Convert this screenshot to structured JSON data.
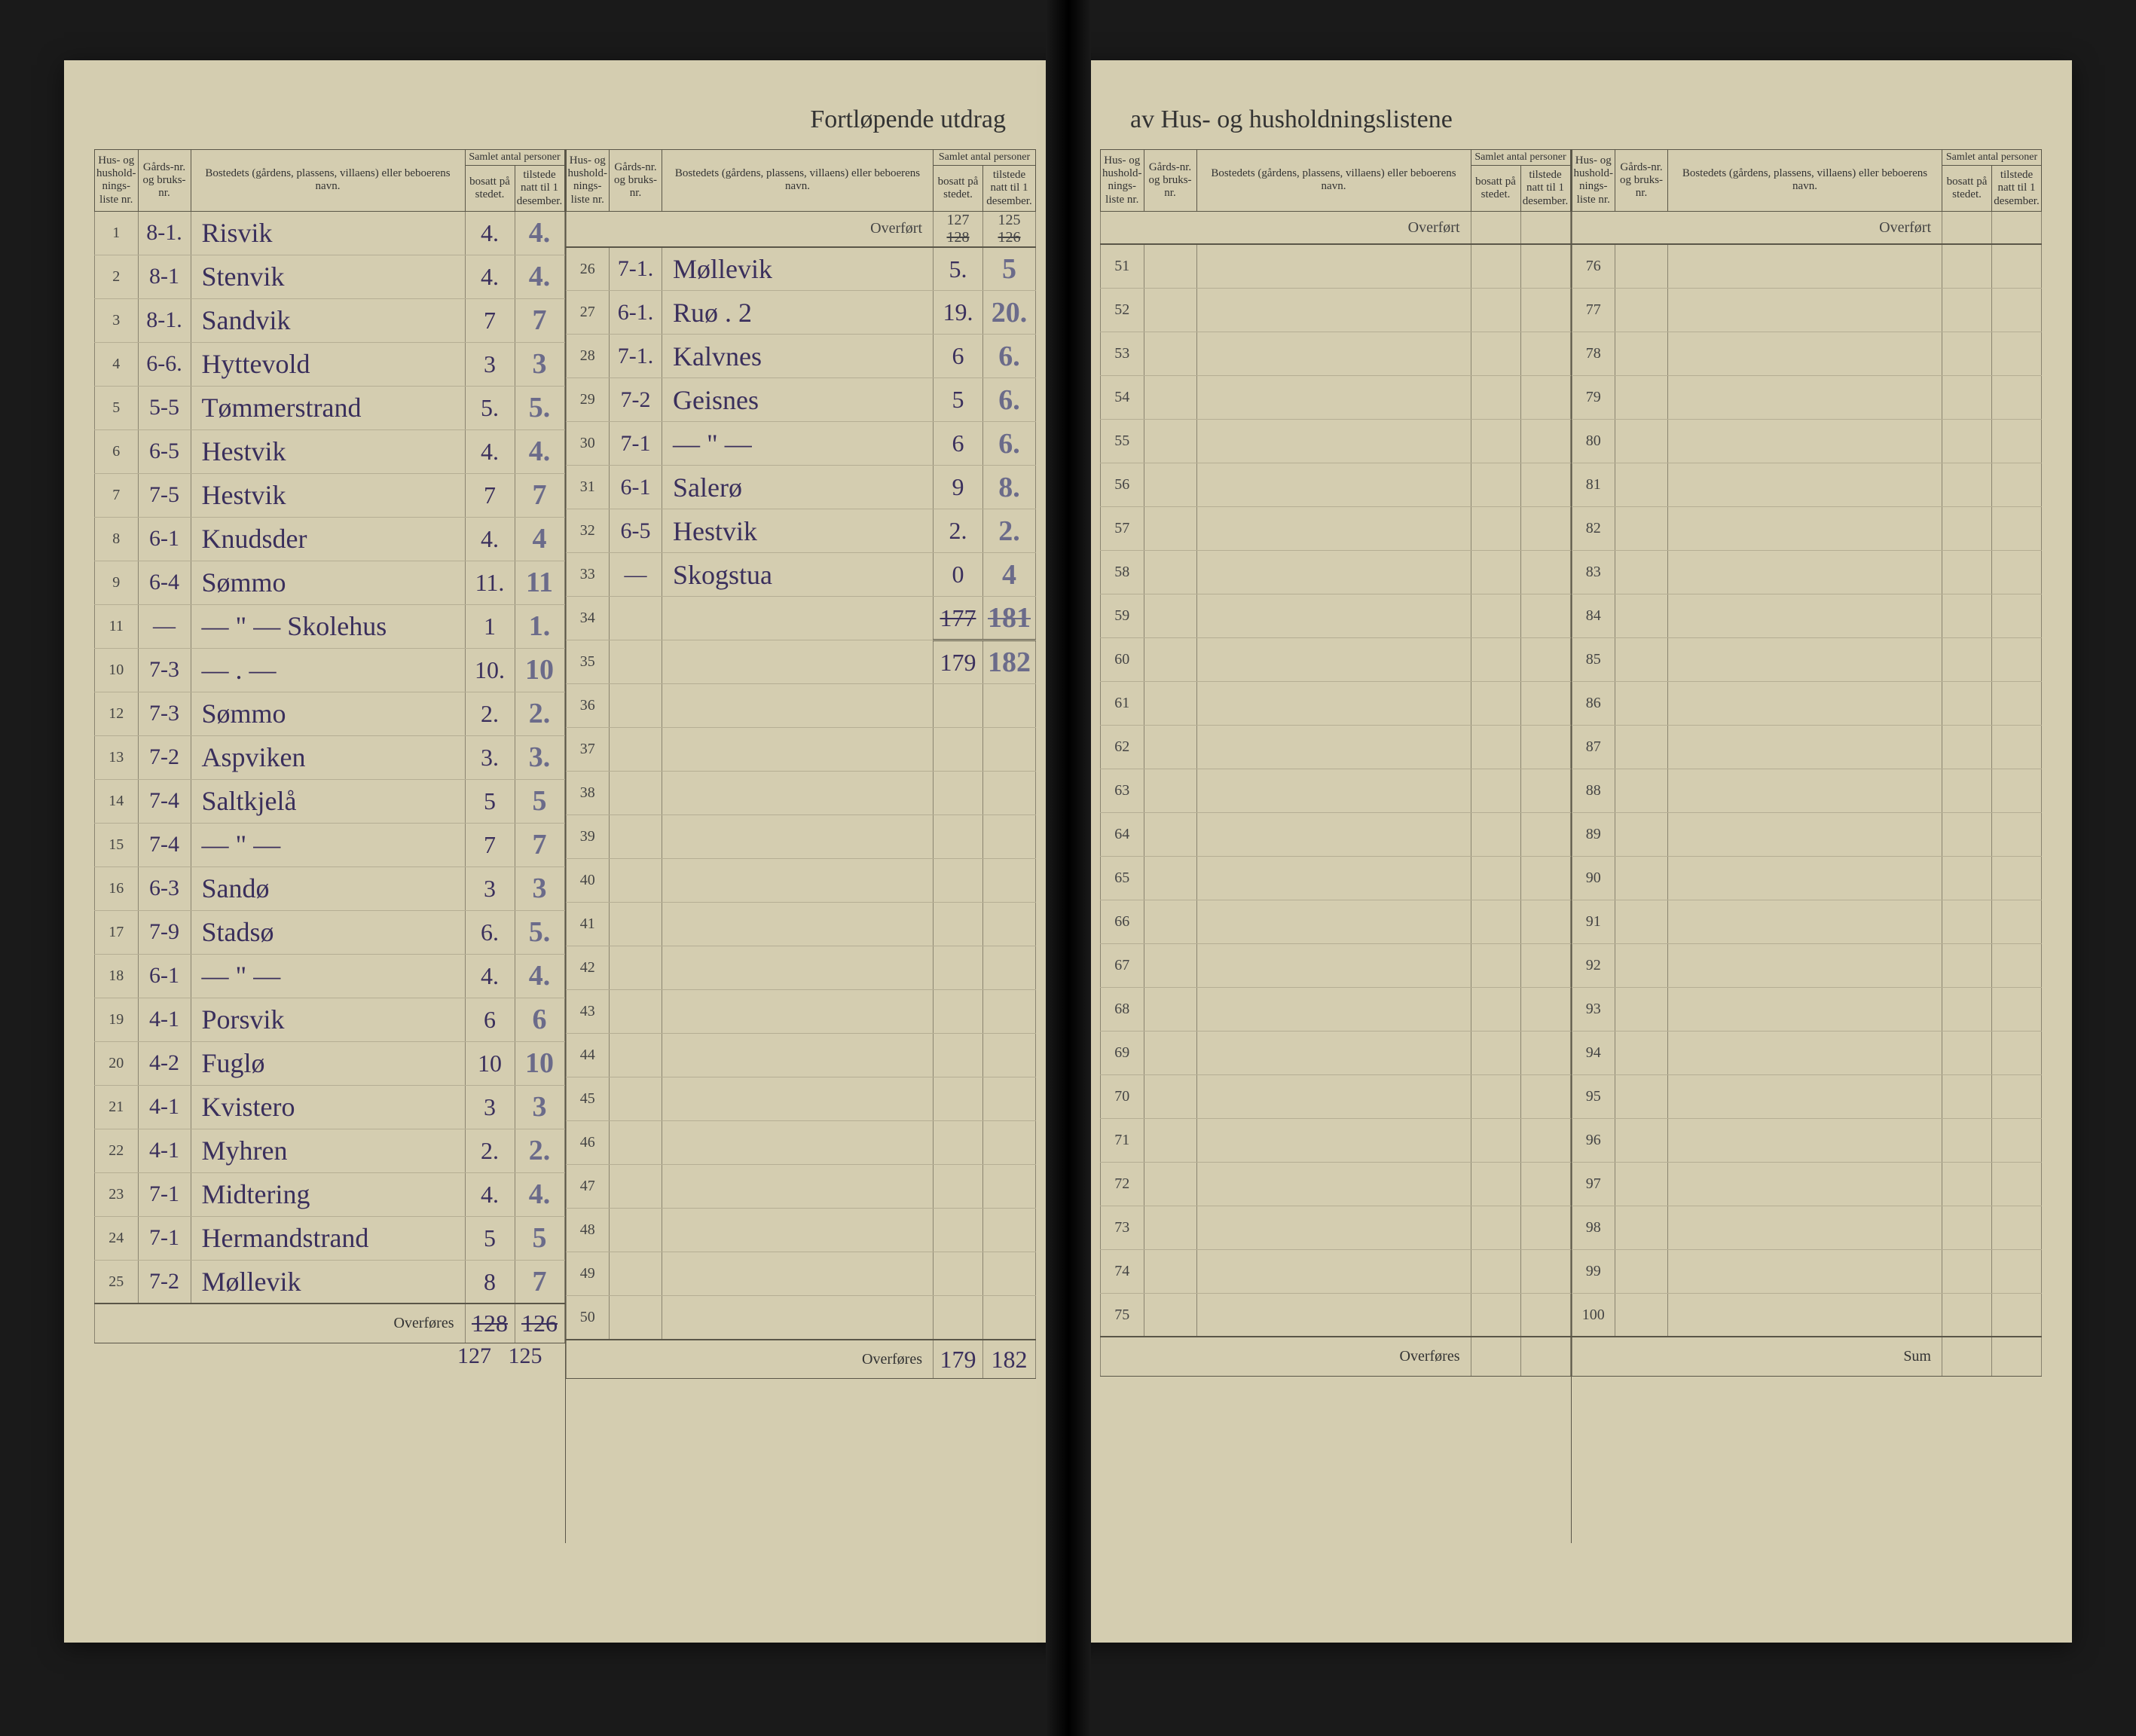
{
  "document": {
    "title_left": "Fortløpende utdrag",
    "title_right": "av Hus- og husholdningslistene",
    "paper_color": "#d4cdb0",
    "rule_color": "#8a8470",
    "header_rule_color": "#5a5648",
    "ink_color": "#3a2f5c",
    "pencil_color": "#6b6b8a",
    "print_color": "#333333"
  },
  "headers": {
    "col_husnr": "Hus- og hushold-nings-liste nr.",
    "col_gard": "Gårds-nr. og bruks-nr.",
    "col_bosted": "Bostedets (gårdens, plassens, villaens) eller beboerens navn.",
    "col_samlet_group": "Samlet antal personer",
    "col_bosatt": "bosatt på stedet.",
    "col_tilstede": "tilstede natt til 1 desember.",
    "overfort": "Overført",
    "overfores": "Overføres",
    "sum": "Sum"
  },
  "col1": {
    "rows": [
      {
        "n": "1",
        "g": "8-1.",
        "name": "Risvik",
        "b": "4.",
        "t": "4."
      },
      {
        "n": "2",
        "g": "8-1",
        "name": "Stenvik",
        "b": "4.",
        "t": "4."
      },
      {
        "n": "3",
        "g": "8-1.",
        "name": "Sandvik",
        "b": "7",
        "t": "7"
      },
      {
        "n": "4",
        "g": "6-6.",
        "name": "Hyttevold",
        "b": "3",
        "t": "3"
      },
      {
        "n": "5",
        "g": "5-5",
        "name": "Tømmerstrand",
        "b": "5.",
        "t": "5."
      },
      {
        "n": "6",
        "g": "6-5",
        "name": "Hestvik",
        "b": "4.",
        "t": "4."
      },
      {
        "n": "7",
        "g": "7-5",
        "name": "Hestvik",
        "b": "7",
        "t": "7"
      },
      {
        "n": "8",
        "g": "6-1",
        "name": "Knudsder",
        "b": "4.",
        "t": "4"
      },
      {
        "n": "9",
        "g": "6-4",
        "name": "Sømmo",
        "b": "11.",
        "t": "11"
      },
      {
        "n": "11",
        "g": "—",
        "name": "— \" — Skolehus",
        "b": "1",
        "t": "1."
      },
      {
        "n": "10",
        "g": "7-3",
        "name": "— . —",
        "b": "10.",
        "t": "10"
      },
      {
        "n": "12",
        "g": "7-3",
        "name": "Sømmo",
        "b": "2.",
        "t": "2."
      },
      {
        "n": "13",
        "g": "7-2",
        "name": "Aspviken",
        "b": "3.",
        "t": "3."
      },
      {
        "n": "14",
        "g": "7-4",
        "name": "Saltkjelå",
        "b": "5",
        "t": "5"
      },
      {
        "n": "15",
        "g": "7-4",
        "name": "— \" —",
        "b": "7",
        "t": "7"
      },
      {
        "n": "16",
        "g": "6-3",
        "name": "Sandø",
        "b": "3",
        "t": "3"
      },
      {
        "n": "17",
        "g": "7-9",
        "name": "Stadsø",
        "b": "6.",
        "t": "5."
      },
      {
        "n": "18",
        "g": "6-1",
        "name": "— \" —",
        "b": "4.",
        "t": "4."
      },
      {
        "n": "19",
        "g": "4-1",
        "name": "Porsvik",
        "b": "6",
        "t": "6"
      },
      {
        "n": "20",
        "g": "4-2",
        "name": "Fuglø",
        "b": "10",
        "t": "10"
      },
      {
        "n": "21",
        "g": "4-1",
        "name": "Kvistero",
        "b": "3",
        "t": "3"
      },
      {
        "n": "22",
        "g": "4-1",
        "name": "Myhren",
        "b": "2.",
        "t": "2."
      },
      {
        "n": "23",
        "g": "7-1",
        "name": "Midtering",
        "b": "4.",
        "t": "4."
      },
      {
        "n": "24",
        "g": "7-1",
        "name": "Hermandstrand",
        "b": "5",
        "t": "5"
      },
      {
        "n": "25",
        "g": "7-2",
        "name": "Møllevik",
        "b": "8",
        "t": "7"
      }
    ],
    "footer_b_strike": "128",
    "footer_t_strike": "126",
    "footer_below_b": "127",
    "footer_below_t": "125"
  },
  "col2": {
    "overfort_b_top": "127",
    "overfort_t_top": "125",
    "overfort_b_strike": "128",
    "overfort_t_strike": "126",
    "rows": [
      {
        "n": "26",
        "g": "7-1.",
        "name": "Møllevik",
        "b": "5.",
        "t": "5"
      },
      {
        "n": "27",
        "g": "6-1.",
        "name": "Ruø   .  2",
        "b": "19.",
        "t": "20."
      },
      {
        "n": "28",
        "g": "7-1.",
        "name": "Kalvnes",
        "b": "6",
        "t": "6."
      },
      {
        "n": "29",
        "g": "7-2",
        "name": "Geisnes",
        "b": "5",
        "t": "6."
      },
      {
        "n": "30",
        "g": "7-1",
        "name": "— \" —",
        "b": "6",
        "t": "6."
      },
      {
        "n": "31",
        "g": "6-1",
        "name": "Salerø",
        "b": "9",
        "t": "8."
      },
      {
        "n": "32",
        "g": "6-5",
        "name": "Hestvik",
        "b": "2.",
        "t": "2."
      },
      {
        "n": "33",
        "g": "—",
        "name": "Skogstua",
        "b": "0",
        "t": "4"
      },
      {
        "n": "34",
        "g": "",
        "name": "",
        "b_strike": "177",
        "t_strike": "181",
        "double": true
      },
      {
        "n": "35",
        "g": "",
        "name": "",
        "b": "179",
        "t": "182"
      },
      {
        "n": "36",
        "g": "",
        "name": "",
        "b": "",
        "t": ""
      },
      {
        "n": "37",
        "g": "",
        "name": "",
        "b": "",
        "t": ""
      },
      {
        "n": "38",
        "g": "",
        "name": "",
        "b": "",
        "t": ""
      },
      {
        "n": "39",
        "g": "",
        "name": "",
        "b": "",
        "t": ""
      },
      {
        "n": "40",
        "g": "",
        "name": "",
        "b": "",
        "t": ""
      },
      {
        "n": "41",
        "g": "",
        "name": "",
        "b": "",
        "t": ""
      },
      {
        "n": "42",
        "g": "",
        "name": "",
        "b": "",
        "t": ""
      },
      {
        "n": "43",
        "g": "",
        "name": "",
        "b": "",
        "t": ""
      },
      {
        "n": "44",
        "g": "",
        "name": "",
        "b": "",
        "t": ""
      },
      {
        "n": "45",
        "g": "",
        "name": "",
        "b": "",
        "t": ""
      },
      {
        "n": "46",
        "g": "",
        "name": "",
        "b": "",
        "t": ""
      },
      {
        "n": "47",
        "g": "",
        "name": "",
        "b": "",
        "t": ""
      },
      {
        "n": "48",
        "g": "",
        "name": "",
        "b": "",
        "t": ""
      },
      {
        "n": "49",
        "g": "",
        "name": "",
        "b": "",
        "t": ""
      },
      {
        "n": "50",
        "g": "",
        "name": "",
        "b": "",
        "t": ""
      }
    ],
    "footer_b": "179",
    "footer_t": "182"
  },
  "col3": {
    "rows": [
      {
        "n": "51"
      },
      {
        "n": "52"
      },
      {
        "n": "53"
      },
      {
        "n": "54"
      },
      {
        "n": "55"
      },
      {
        "n": "56"
      },
      {
        "n": "57"
      },
      {
        "n": "58"
      },
      {
        "n": "59"
      },
      {
        "n": "60"
      },
      {
        "n": "61"
      },
      {
        "n": "62"
      },
      {
        "n": "63"
      },
      {
        "n": "64"
      },
      {
        "n": "65"
      },
      {
        "n": "66"
      },
      {
        "n": "67"
      },
      {
        "n": "68"
      },
      {
        "n": "69"
      },
      {
        "n": "70"
      },
      {
        "n": "71"
      },
      {
        "n": "72"
      },
      {
        "n": "73"
      },
      {
        "n": "74"
      },
      {
        "n": "75"
      }
    ]
  },
  "col4": {
    "rows": [
      {
        "n": "76"
      },
      {
        "n": "77"
      },
      {
        "n": "78"
      },
      {
        "n": "79"
      },
      {
        "n": "80"
      },
      {
        "n": "81"
      },
      {
        "n": "82"
      },
      {
        "n": "83"
      },
      {
        "n": "84"
      },
      {
        "n": "85"
      },
      {
        "n": "86"
      },
      {
        "n": "87"
      },
      {
        "n": "88"
      },
      {
        "n": "89"
      },
      {
        "n": "90"
      },
      {
        "n": "91"
      },
      {
        "n": "92"
      },
      {
        "n": "93"
      },
      {
        "n": "94"
      },
      {
        "n": "95"
      },
      {
        "n": "96"
      },
      {
        "n": "97"
      },
      {
        "n": "98"
      },
      {
        "n": "99"
      },
      {
        "n": "100"
      }
    ]
  }
}
